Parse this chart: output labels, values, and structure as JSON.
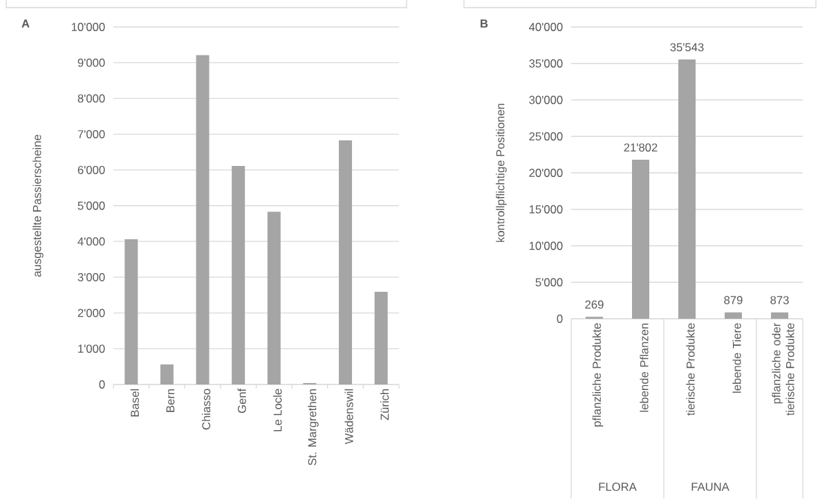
{
  "chart_data": [
    {
      "type": "bar",
      "title": "A",
      "ylabel": "ausgestellte Passierscheine",
      "categories": [
        "Basel",
        "Bern",
        "Chiasso",
        "Genf",
        "Le Locle",
        "St. Margrethen",
        "Wädenswil",
        "Zürich"
      ],
      "values": [
        4060,
        560,
        9210,
        6110,
        4830,
        40,
        6830,
        2590
      ],
      "color": "#a5a5a5",
      "ylim": [
        0,
        10000
      ],
      "yticks": [
        0,
        {
          "value": 1000,
          "label": "1'000"
        },
        {
          "value": 2000,
          "label": "2'000"
        },
        {
          "value": 3000,
          "label": "3'000"
        },
        {
          "value": 4000,
          "label": "4'000"
        },
        {
          "value": 5000,
          "label": "5'000"
        },
        {
          "value": 6000,
          "label": "6'000"
        },
        {
          "value": 7000,
          "label": "7'000"
        },
        {
          "value": 8000,
          "label": "8'000"
        },
        {
          "value": 9000,
          "label": "9'000"
        },
        {
          "value": 10000,
          "label": "10'000"
        }
      ],
      "grid": "y"
    },
    {
      "type": "bar",
      "title": "B",
      "ylabel": "kontrollpflichtige Positionen",
      "categories": [
        "pflanzliche Produkte",
        "lebende Pflanzen",
        "tierische Produkte",
        "lebende Tiere",
        "pflanzliche oder tierische Produkte"
      ],
      "values": [
        269,
        21802,
        35543,
        879,
        873
      ],
      "value_labels": [
        "269",
        "21'802",
        "35'543",
        "879",
        "873"
      ],
      "color": "#a5a5a5",
      "ylim": [
        0,
        40000
      ],
      "yticks": [
        0,
        {
          "value": 5000,
          "label": "5'000"
        },
        {
          "value": 10000,
          "label": "10'000"
        },
        {
          "value": 15000,
          "label": "15'000"
        },
        {
          "value": 20000,
          "label": "20'000"
        },
        {
          "value": 25000,
          "label": "25'000"
        },
        {
          "value": 30000,
          "label": "30'000"
        },
        {
          "value": 35000,
          "label": "35'000"
        },
        {
          "value": 40000,
          "label": "40'000"
        }
      ],
      "grid": "y",
      "annotations": [
        "FLORA",
        "FAUNA"
      ]
    }
  ]
}
